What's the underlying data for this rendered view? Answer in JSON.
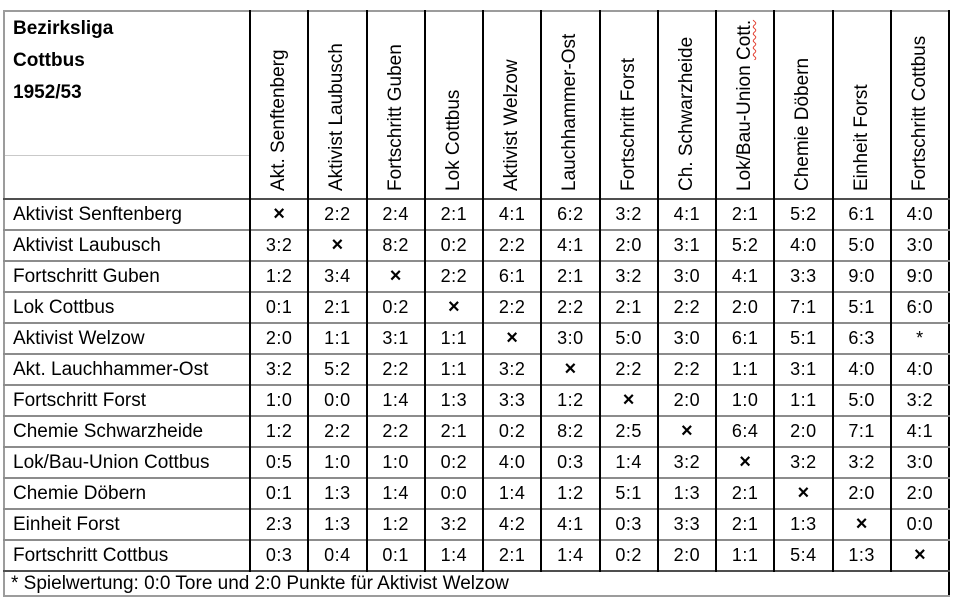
{
  "header": {
    "title_lines": [
      "Bezirksliga",
      "Cottbus",
      "1952/53"
    ]
  },
  "table": {
    "diagonal_marker": "×",
    "asterisk_marker": "*",
    "spellcheck": {
      "column_index": 8,
      "word": "Cott."
    },
    "columns": [
      "Akt. Senftenberg",
      "Aktivist Laubusch",
      "Fortschritt Guben",
      "Lok Cottbus",
      "Aktivist Welzow",
      "Lauchhammer-Ost",
      "Fortschritt Forst",
      "Ch. Schwarzheide",
      "Lok/Bau-Union Cott.",
      "Chemie Döbern",
      "Einheit Forst",
      "Fortschritt Cottbus"
    ],
    "rows": [
      {
        "team": "Aktivist Senftenberg",
        "results": [
          "×",
          "2:2",
          "2:4",
          "2:1",
          "4:1",
          "6:2",
          "3:2",
          "4:1",
          "2:1",
          "5:2",
          "6:1",
          "4:0"
        ]
      },
      {
        "team": "Aktivist Laubusch",
        "results": [
          "3:2",
          "×",
          "8:2",
          "0:2",
          "2:2",
          "4:1",
          "2:0",
          "3:1",
          "5:2",
          "4:0",
          "5:0",
          "3:0"
        ]
      },
      {
        "team": "Fortschritt Guben",
        "results": [
          "1:2",
          "3:4",
          "×",
          "2:2",
          "6:1",
          "2:1",
          "3:2",
          "3:0",
          "4:1",
          "3:3",
          "9:0",
          "9:0"
        ]
      },
      {
        "team": "Lok Cottbus",
        "results": [
          "0:1",
          "2:1",
          "0:2",
          "×",
          "2:2",
          "2:2",
          "2:1",
          "2:2",
          "2:0",
          "7:1",
          "5:1",
          "6:0"
        ]
      },
      {
        "team": "Aktivist Welzow",
        "results": [
          "2:0",
          "1:1",
          "3:1",
          "1:1",
          "×",
          "3:0",
          "5:0",
          "3:0",
          "6:1",
          "5:1",
          "6:3",
          "*"
        ]
      },
      {
        "team": "Akt. Lauchhammer-Ost",
        "results": [
          "3:2",
          "5:2",
          "2:2",
          "1:1",
          "3:2",
          "×",
          "2:2",
          "2:2",
          "1:1",
          "3:1",
          "4:0",
          "4:0"
        ]
      },
      {
        "team": "Fortschritt Forst",
        "results": [
          "1:0",
          "0:0",
          "1:4",
          "1:3",
          "3:3",
          "1:2",
          "×",
          "2:0",
          "1:0",
          "1:1",
          "5:0",
          "3:2"
        ]
      },
      {
        "team": "Chemie Schwarzheide",
        "results": [
          "1:2",
          "2:2",
          "2:2",
          "2:1",
          "0:2",
          "8:2",
          "2:5",
          "×",
          "6:4",
          "2:0",
          "7:1",
          "4:1"
        ]
      },
      {
        "team": "Lok/Bau-Union Cottbus",
        "results": [
          "0:5",
          "1:0",
          "1:0",
          "0:2",
          "4:0",
          "0:3",
          "1:4",
          "3:2",
          "×",
          "3:2",
          "3:2",
          "3:0"
        ]
      },
      {
        "team": "Chemie Döbern",
        "results": [
          "0:1",
          "1:3",
          "1:4",
          "0:0",
          "1:4",
          "1:2",
          "5:1",
          "1:3",
          "2:1",
          "×",
          "2:0",
          "2:0"
        ]
      },
      {
        "team": "Einheit Forst",
        "results": [
          "2:3",
          "1:3",
          "1:2",
          "3:2",
          "4:2",
          "4:1",
          "0:3",
          "3:3",
          "2:1",
          "1:3",
          "×",
          "0:0"
        ]
      },
      {
        "team": "Fortschritt Cottbus",
        "results": [
          "0:3",
          "0:4",
          "0:1",
          "1:4",
          "2:1",
          "1:4",
          "0:2",
          "2:0",
          "1:1",
          "5:4",
          "1:3",
          "×"
        ]
      }
    ],
    "footnote": "* Spielwertung: 0:0 Tore und 2:0 Punkte für Aktivist Welzow"
  },
  "colors": {
    "grid_vertical": "#000000",
    "grid_horizontal": "#8c8c8c",
    "grid_outer_gray": "#9c9c9c",
    "header_divider": "#4f4f4f",
    "spellcheck_underline": "#e23d2e",
    "text": "#000000",
    "background": "#ffffff"
  }
}
